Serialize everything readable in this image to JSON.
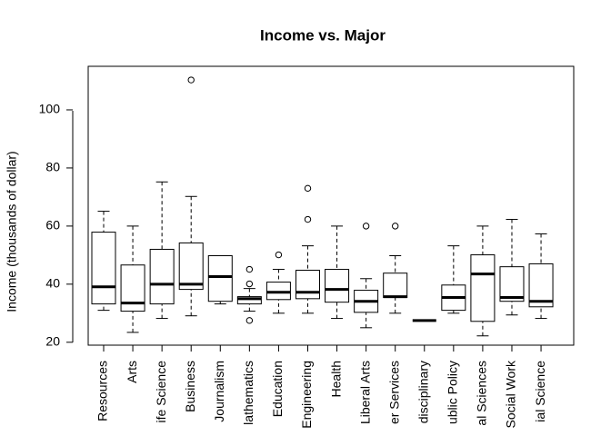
{
  "chart_data": {
    "type": "boxplot",
    "title": "Income vs. Major",
    "ylabel": "Income (thousands of dollar)",
    "categories": [
      "Resources",
      "Arts",
      "ife Science",
      "Business",
      "Journalism",
      "lathematics",
      "Education",
      "Engineering",
      "Health",
      "Liberal Arts",
      "er Services",
      "disciplinary",
      "ublic Policy",
      "al Sciences",
      "Social Work",
      "ial Science"
    ],
    "boxes": [
      {
        "low": 31.0,
        "q1": 33.2,
        "median": 39.1,
        "q3": 57.9,
        "high": 65.1,
        "outliers": []
      },
      {
        "low": 23.4,
        "q1": 30.7,
        "median": 33.5,
        "q3": 46.6,
        "high": 60.0,
        "outliers": []
      },
      {
        "low": 28.2,
        "q1": 33.2,
        "median": 40.0,
        "q3": 52.0,
        "high": 75.2,
        "outliers": []
      },
      {
        "low": 29.1,
        "q1": 38.2,
        "median": 40.0,
        "q3": 54.2,
        "high": 70.2,
        "outliers": [
          110.3
        ]
      },
      {
        "low": 33.2,
        "q1": 34.1,
        "median": 42.6,
        "q3": 49.8,
        "high": 49.8,
        "outliers": []
      },
      {
        "low": 30.7,
        "q1": 33.2,
        "median": 35.0,
        "q3": 35.7,
        "high": 38.5,
        "outliers": [
          45.1,
          40.1,
          27.5
        ]
      },
      {
        "low": 30.0,
        "q1": 34.7,
        "median": 37.2,
        "q3": 40.7,
        "high": 45.1,
        "outliers": [
          50.1
        ]
      },
      {
        "low": 30.0,
        "q1": 35.0,
        "median": 37.2,
        "q3": 44.8,
        "high": 53.2,
        "outliers": [
          73.0,
          62.3
        ]
      },
      {
        "low": 28.2,
        "q1": 33.8,
        "median": 38.2,
        "q3": 45.1,
        "high": 60.0,
        "outliers": []
      },
      {
        "low": 25.0,
        "q1": 30.3,
        "median": 34.1,
        "q3": 37.9,
        "high": 41.9,
        "outliers": [
          60.0
        ]
      },
      {
        "low": 30.0,
        "q1": 35.4,
        "median": 35.7,
        "q3": 43.8,
        "high": 49.8,
        "outliers": [
          60.0
        ]
      },
      {
        "low": 27.5,
        "q1": 27.5,
        "median": 27.5,
        "q3": 27.5,
        "high": 27.5,
        "outliers": []
      },
      {
        "low": 30.0,
        "q1": 31.0,
        "median": 35.4,
        "q3": 39.7,
        "high": 53.2,
        "outliers": []
      },
      {
        "low": 22.2,
        "q1": 27.2,
        "median": 43.5,
        "q3": 50.1,
        "high": 60.0,
        "outliers": []
      },
      {
        "low": 29.4,
        "q1": 34.1,
        "median": 35.4,
        "q3": 46.0,
        "high": 62.3,
        "outliers": []
      },
      {
        "low": 28.2,
        "q1": 32.2,
        "median": 34.1,
        "q3": 47.0,
        "high": 57.3,
        "outliers": []
      }
    ],
    "ylim": [
      19,
      115
    ],
    "yticks": [
      20,
      40,
      60,
      80,
      100
    ],
    "color": "#ffffff"
  }
}
